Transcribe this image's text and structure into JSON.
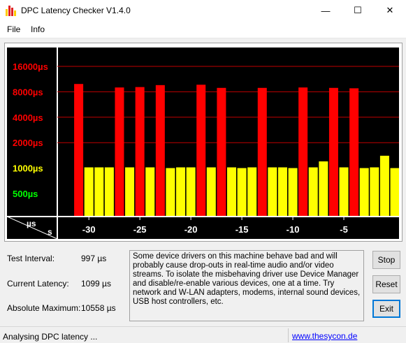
{
  "window": {
    "title": "DPC Latency Checker V1.4.0",
    "minimize_glyph": "—",
    "maximize_glyph": "☐",
    "close_glyph": "✕"
  },
  "menu": {
    "file": "File",
    "info": "Info"
  },
  "chart_data": {
    "type": "bar",
    "y_axis_labels": [
      {
        "text": "16000µs",
        "value": 16000,
        "color": "#ff0000"
      },
      {
        "text": "8000µs",
        "value": 8000,
        "color": "#ff0000"
      },
      {
        "text": "4000µs",
        "value": 4000,
        "color": "#ff0000"
      },
      {
        "text": "2000µs",
        "value": 2000,
        "color": "#ff0000"
      },
      {
        "text": "1000µs",
        "value": 1000,
        "color": "#ffff00"
      },
      {
        "text": "500µs",
        "value": 500,
        "color": "#00ff00"
      }
    ],
    "corner_labels": {
      "y_unit": "µs",
      "x_unit": "s"
    },
    "x_ticks": [
      -30,
      -25,
      -20,
      -15,
      -10,
      -5
    ],
    "x_range": [
      -32,
      0
    ],
    "y_scale": "log2",
    "y_range": [
      300,
      22000
    ],
    "background": "#000000",
    "grid_color": "#c00000",
    "colors": {
      "warning": "#ff0000",
      "ok": "#ffff00",
      "low": "#00ff00"
    },
    "bars": [
      {
        "t": -31,
        "value": 9900,
        "color": "red"
      },
      {
        "t": -30,
        "value": 1020,
        "color": "yellow"
      },
      {
        "t": -29,
        "value": 1020,
        "color": "yellow"
      },
      {
        "t": -28,
        "value": 1020,
        "color": "yellow"
      },
      {
        "t": -27,
        "value": 9000,
        "color": "red"
      },
      {
        "t": -26,
        "value": 1020,
        "color": "yellow"
      },
      {
        "t": -25,
        "value": 9100,
        "color": "red"
      },
      {
        "t": -24,
        "value": 1020,
        "color": "yellow"
      },
      {
        "t": -23,
        "value": 9600,
        "color": "red"
      },
      {
        "t": -22,
        "value": 1000,
        "color": "yellow"
      },
      {
        "t": -21,
        "value": 1020,
        "color": "yellow"
      },
      {
        "t": -20,
        "value": 1020,
        "color": "yellow"
      },
      {
        "t": -19,
        "value": 9700,
        "color": "red"
      },
      {
        "t": -18,
        "value": 1020,
        "color": "yellow"
      },
      {
        "t": -17,
        "value": 8900,
        "color": "red"
      },
      {
        "t": -16,
        "value": 1020,
        "color": "yellow"
      },
      {
        "t": -15,
        "value": 1000,
        "color": "yellow"
      },
      {
        "t": -14,
        "value": 1020,
        "color": "yellow"
      },
      {
        "t": -13,
        "value": 8900,
        "color": "red"
      },
      {
        "t": -12,
        "value": 1020,
        "color": "yellow"
      },
      {
        "t": -11,
        "value": 1020,
        "color": "yellow"
      },
      {
        "t": -10,
        "value": 1000,
        "color": "yellow"
      },
      {
        "t": -9,
        "value": 9000,
        "color": "red"
      },
      {
        "t": -8,
        "value": 1020,
        "color": "yellow"
      },
      {
        "t": -7,
        "value": 1200,
        "color": "yellow"
      },
      {
        "t": -6,
        "value": 8900,
        "color": "red"
      },
      {
        "t": -5,
        "value": 1020,
        "color": "yellow"
      },
      {
        "t": -4,
        "value": 8800,
        "color": "red"
      },
      {
        "t": -3,
        "value": 1000,
        "color": "yellow"
      },
      {
        "t": -2,
        "value": 1020,
        "color": "yellow"
      },
      {
        "t": -1,
        "value": 1400,
        "color": "yellow"
      },
      {
        "t": 0,
        "value": 1000,
        "color": "yellow"
      }
    ]
  },
  "stats": {
    "test_interval_label": "Test Interval:",
    "test_interval_value": "997 µs",
    "current_latency_label": "Current Latency:",
    "current_latency_value": "1099 µs",
    "absolute_max_label": "Absolute Maximum:",
    "absolute_max_value": "10558 µs"
  },
  "info_text": "Some device drivers on this machine behave bad and will probably cause drop-outs in real-time audio and/or video streams. To isolate the misbehaving driver use Device Manager and disable/re-enable various devices, one at a time. Try network and W-LAN adapters, modems, internal sound devices, USB host controllers, etc.",
  "buttons": {
    "stop": "Stop",
    "reset": "Reset",
    "exit": "Exit"
  },
  "status": {
    "text": "Analysing DPC latency ...",
    "link": "www.thesycon.de"
  }
}
